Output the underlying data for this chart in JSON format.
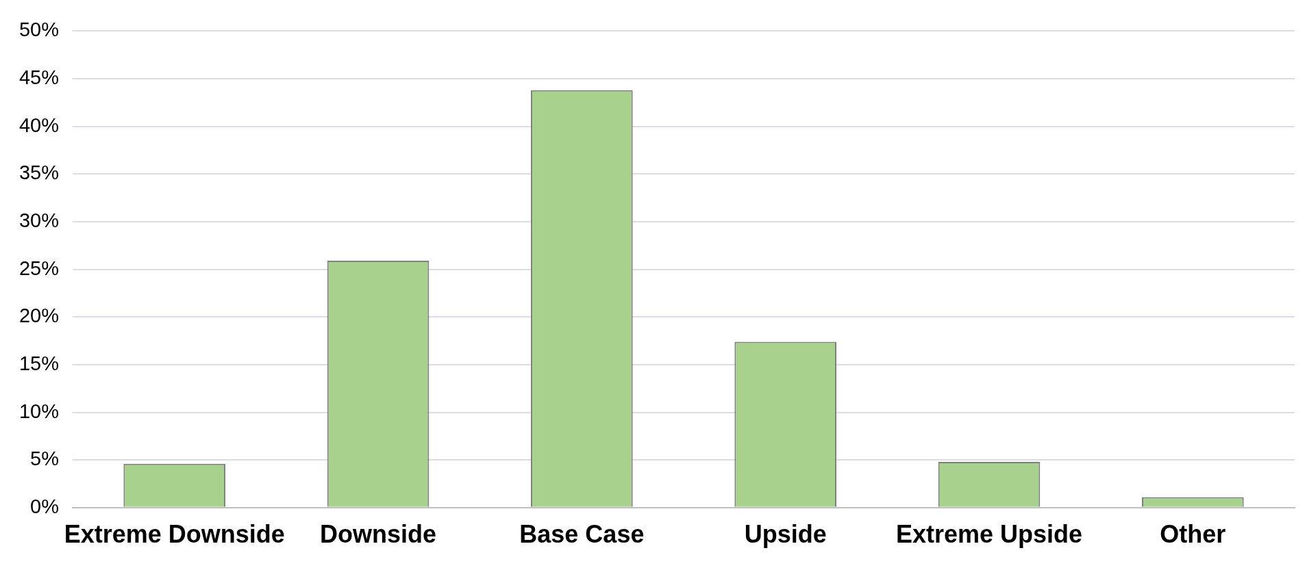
{
  "chart_data": {
    "type": "bar",
    "categories": [
      "Extreme Downside",
      "Downside",
      "Base Case",
      "Upside",
      "Extreme Upside",
      "Other"
    ],
    "values": [
      4.6,
      25.9,
      43.8,
      17.4,
      4.8,
      1.1
    ],
    "color": "#a9d18e",
    "ylim": [
      0,
      50
    ],
    "yticks": [
      {
        "value": 0,
        "label": "0%"
      },
      {
        "value": 5,
        "label": "5%"
      },
      {
        "value": 10,
        "label": "10%"
      },
      {
        "value": 15,
        "label": "15%"
      },
      {
        "value": 20,
        "label": "20%"
      },
      {
        "value": 25,
        "label": "25%"
      },
      {
        "value": 30,
        "label": "30%"
      },
      {
        "value": 35,
        "label": "35%"
      },
      {
        "value": 40,
        "label": "40%"
      },
      {
        "value": 45,
        "label": "45%"
      },
      {
        "value": 50,
        "label": "50%"
      }
    ],
    "grid": "y",
    "legend": false
  }
}
